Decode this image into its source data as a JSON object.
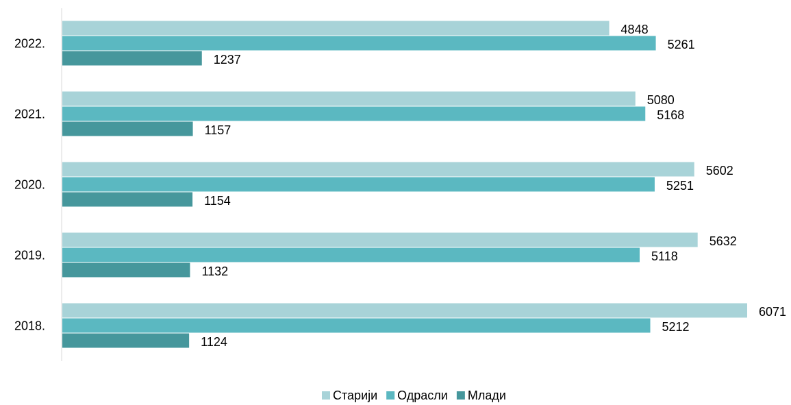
{
  "chart_data": {
    "type": "hbar",
    "categories": [
      "2022.",
      "2021.",
      "2020.",
      "2019.",
      "2018."
    ],
    "series": [
      {
        "name": "Старији",
        "color": "#a8d3d8",
        "values": [
          4848,
          5080,
          5602,
          5632,
          6071
        ]
      },
      {
        "name": "Одрасли",
        "color": "#5bb8c1",
        "values": [
          5261,
          5168,
          5251,
          5118,
          5212
        ]
      },
      {
        "name": "Млади",
        "color": "#46979c",
        "values": [
          1237,
          1157,
          1154,
          1132,
          1124
        ]
      }
    ]
  }
}
